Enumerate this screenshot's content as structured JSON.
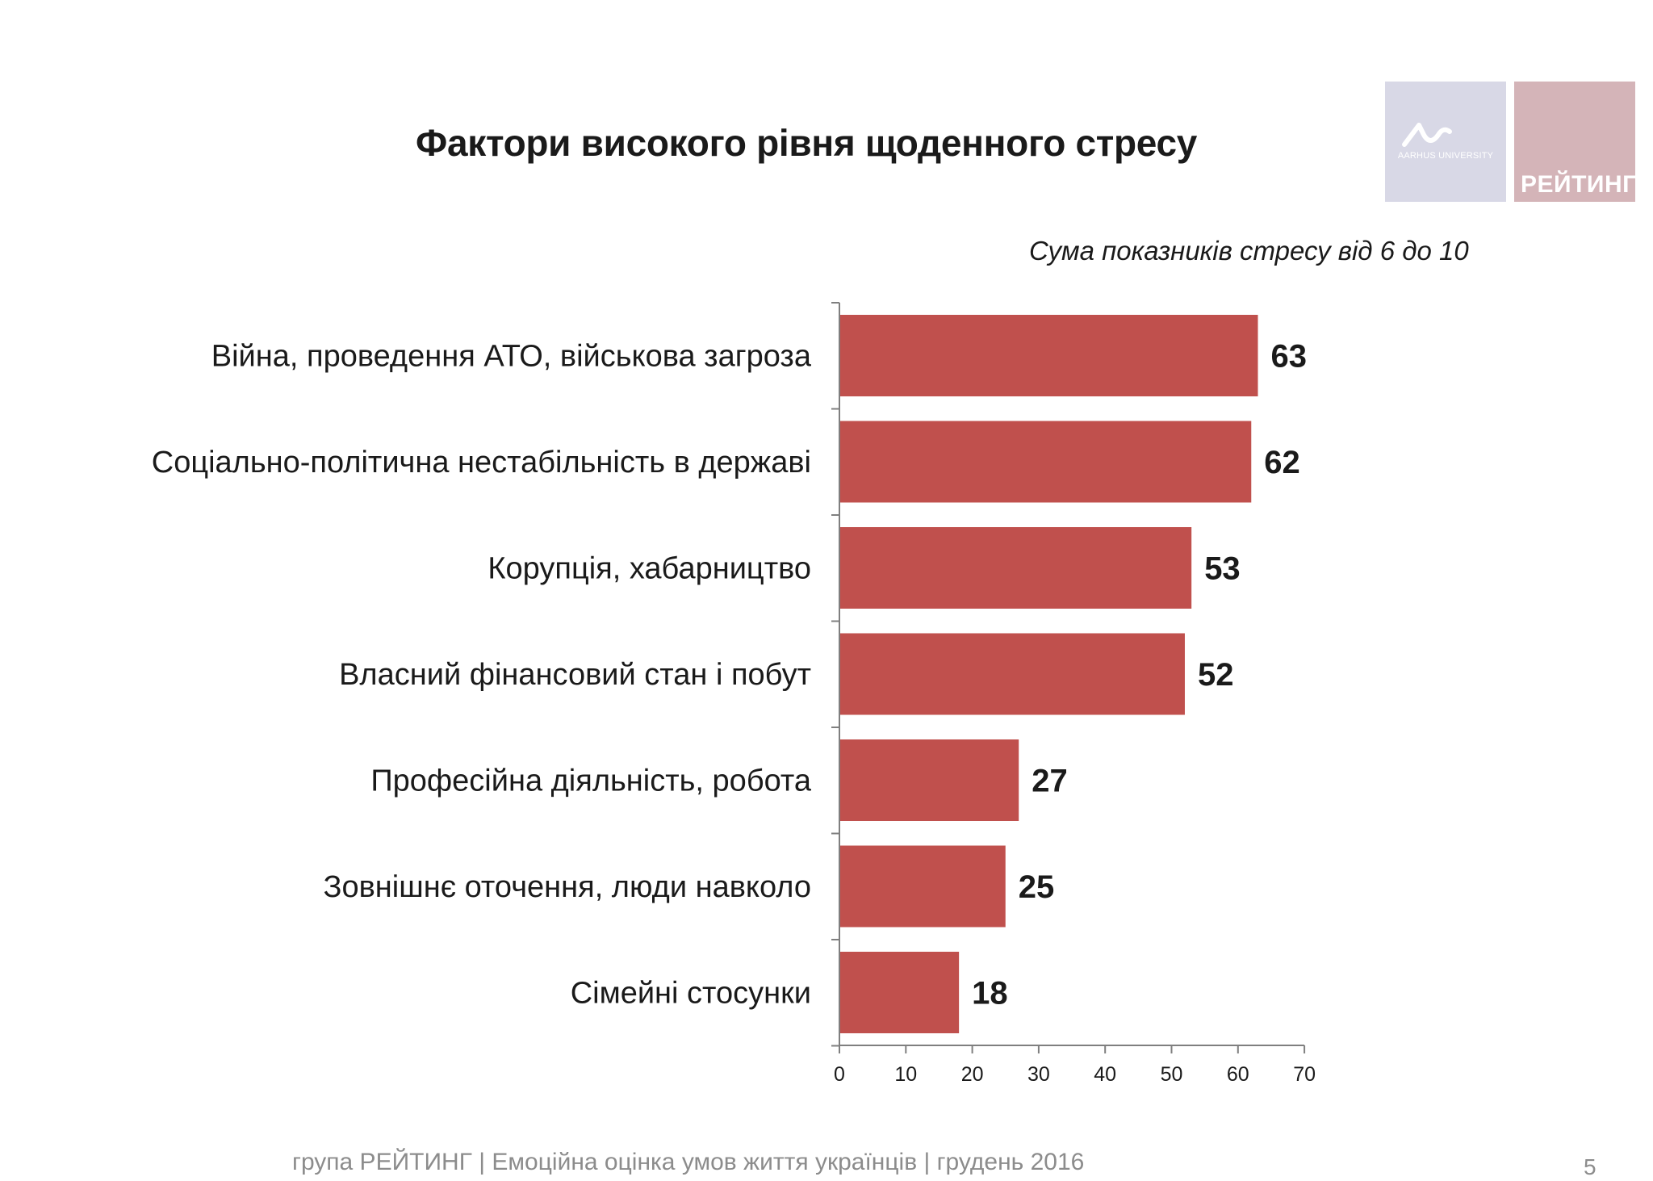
{
  "title": "Фактори високого рівня щоденного стресу",
  "logos": {
    "aarhus": "AARHUS UNIVERSITY",
    "rating": "РЕЙТИНГ"
  },
  "colors": {
    "bar": "#c0504d",
    "axis": "#7f7f7f",
    "text": "#1a1a1a",
    "footer": "#8c8c8c"
  },
  "chart_data": {
    "type": "bar",
    "orientation": "horizontal",
    "subtitle": "Сума показників стресу від 6 до 10",
    "categories": [
      "Війна, проведення АТО, військова загроза",
      "Соціально-політична нестабільність в державі",
      "Корупція, хабарництво",
      "Власний фінансовий стан і побут",
      "Професійна діяльність, робота",
      "Зовнішнє оточення, люди навколо",
      "Сімейні стосунки"
    ],
    "values": [
      63,
      62,
      53,
      52,
      27,
      25,
      18
    ],
    "xlim": [
      0,
      70
    ],
    "xticks": [
      0,
      10,
      20,
      30,
      40,
      50,
      60,
      70
    ],
    "grid": false,
    "legend": "none"
  },
  "footer": {
    "text": "група РЕЙТИНГ  |  Емоційна оцінка умов життя українців |  грудень 2016",
    "page": "5"
  }
}
